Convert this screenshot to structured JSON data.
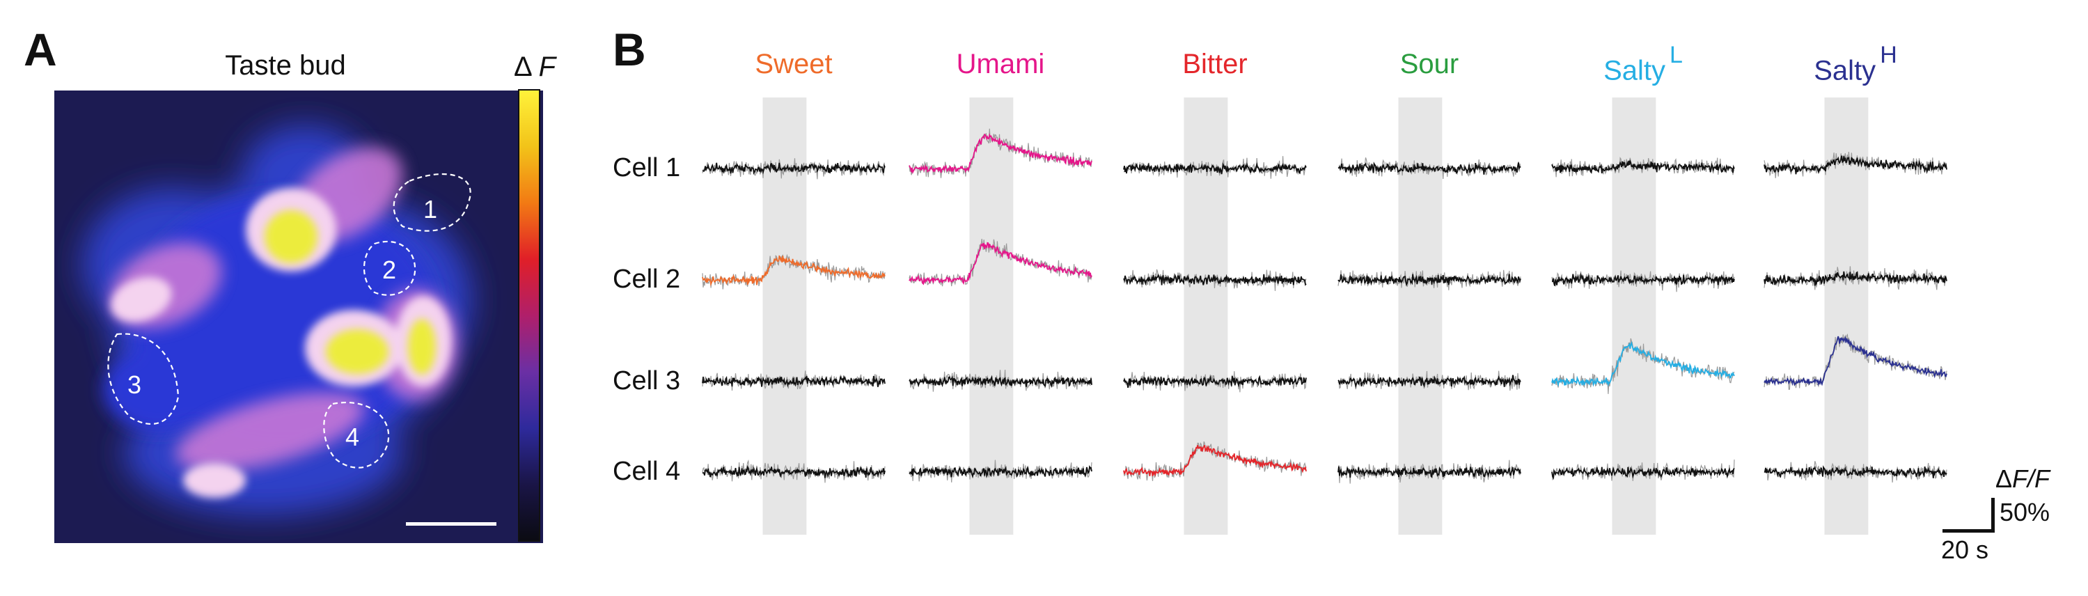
{
  "panel_a": {
    "letter": "A",
    "title": "Taste bud",
    "colorbar_symbol": "Δ",
    "colorbar_var": "F",
    "colorbar_colors": [
      "#0b0b12",
      "#1a1547",
      "#2e2a9c",
      "#6b2fa4",
      "#b01f6a",
      "#e01f28",
      "#f27a14",
      "#f2c319",
      "#fff23a"
    ],
    "cells": [
      {
        "id": "cell-1",
        "label": "1"
      },
      {
        "id": "cell-2",
        "label": "2"
      },
      {
        "id": "cell-3",
        "label": "3"
      },
      {
        "id": "cell-4",
        "label": "4"
      }
    ]
  },
  "panel_b": {
    "letter": "B",
    "columns": [
      {
        "label": "Sweet",
        "sup": "",
        "color": "#ef6b2a"
      },
      {
        "label": "Umami",
        "sup": "",
        "color": "#e5168a"
      },
      {
        "label": "Bitter",
        "sup": "",
        "color": "#e4262b"
      },
      {
        "label": "Sour",
        "sup": "",
        "color": "#2a9d3f"
      },
      {
        "label": "Salty",
        "sup": "L",
        "color": "#25aee3"
      },
      {
        "label": "Salty",
        "sup": "H",
        "color": "#2b3190"
      }
    ],
    "rows": [
      {
        "label": "Cell 1"
      },
      {
        "label": "Cell 2"
      },
      {
        "label": "Cell 3"
      },
      {
        "label": "Cell 4"
      }
    ],
    "responses": [
      [
        0,
        1,
        0,
        0,
        0,
        0
      ],
      [
        1,
        1,
        0,
        0,
        0,
        0
      ],
      [
        0,
        0,
        0,
        0,
        1,
        1
      ],
      [
        0,
        0,
        1,
        0,
        0,
        0
      ]
    ],
    "response_amplitude": [
      [
        0.0,
        0.45,
        0.0,
        0.0,
        0.05,
        0.12
      ],
      [
        0.3,
        0.5,
        0.0,
        0.0,
        0.0,
        0.05
      ],
      [
        0.0,
        0.0,
        0.0,
        0.0,
        0.5,
        0.6
      ],
      [
        0.0,
        0.0,
        0.35,
        0.0,
        0.0,
        0.0
      ]
    ],
    "stimulus_band_color": "#e6e6e6",
    "trace_color_nonresponse": "#111111",
    "trace_sd_color": "#9a9a9a",
    "scale_bar": {
      "y_symbol": "Δ",
      "y_var": "F/F",
      "y_value": "50%",
      "x_value": "20 s"
    }
  }
}
